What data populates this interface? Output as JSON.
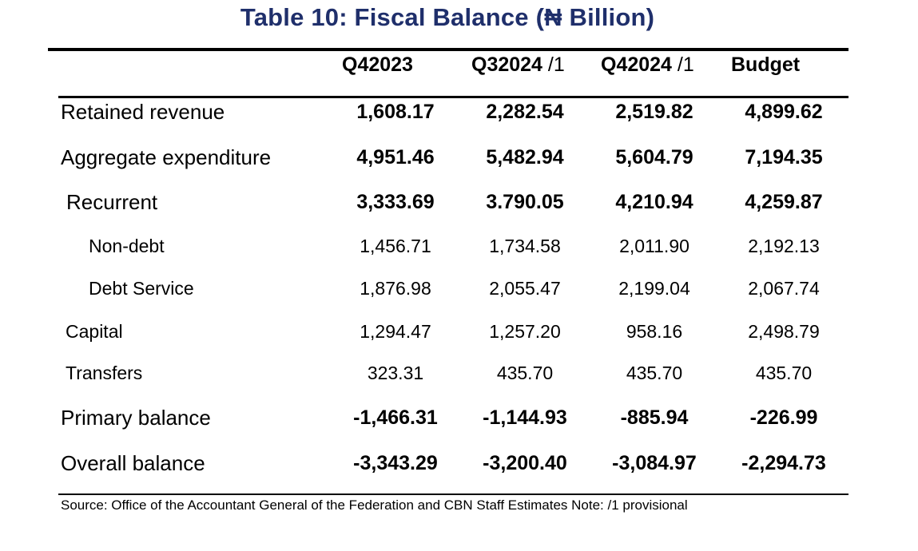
{
  "title": "Table 10: Fiscal Balance (₦ Billion)",
  "columns": [
    {
      "main": "Q42023",
      "suffix": ""
    },
    {
      "main": "Q32024",
      "suffix": " /1"
    },
    {
      "main": "Q42024",
      "suffix": " /1"
    },
    {
      "main": "Budget",
      "suffix": ""
    }
  ],
  "rows": [
    {
      "label": "Retained revenue",
      "values": [
        "1,608.17",
        "2,282.54",
        "2,519.82",
        "4,899.62"
      ]
    },
    {
      "label": "Aggregate expenditure",
      "values": [
        "4,951.46",
        "5,482.94",
        "5,604.79",
        "7,194.35"
      ]
    },
    {
      "label": "Recurrent",
      "values": [
        "3,333.69",
        "3.790.05",
        "4,210.94",
        "4,259.87"
      ]
    },
    {
      "label": "Non-debt",
      "values": [
        "1,456.71",
        "1,734.58",
        "2,011.90",
        "2,192.13"
      ]
    },
    {
      "label": "Debt Service",
      "values": [
        "1,876.98",
        "2,055.47",
        "2,199.04",
        "2,067.74"
      ]
    },
    {
      "label": "Capital",
      "values": [
        "1,294.47",
        "1,257.20",
        "958.16",
        "2,498.79"
      ]
    },
    {
      "label": "Transfers",
      "values": [
        "323.31",
        "435.70",
        "435.70",
        "435.70"
      ]
    },
    {
      "label": "Primary balance",
      "values": [
        "-1,466.31",
        "-1,144.93",
        "-885.94",
        "-226.99"
      ]
    },
    {
      "label": "Overall balance",
      "values": [
        "-3,343.29",
        "-3,200.40",
        "-3,084.97",
        "-2,294.73"
      ]
    }
  ],
  "source": "Source: Office of the Accountant General of the Federation and CBN Staff Estimates Note: /1 provisional"
}
